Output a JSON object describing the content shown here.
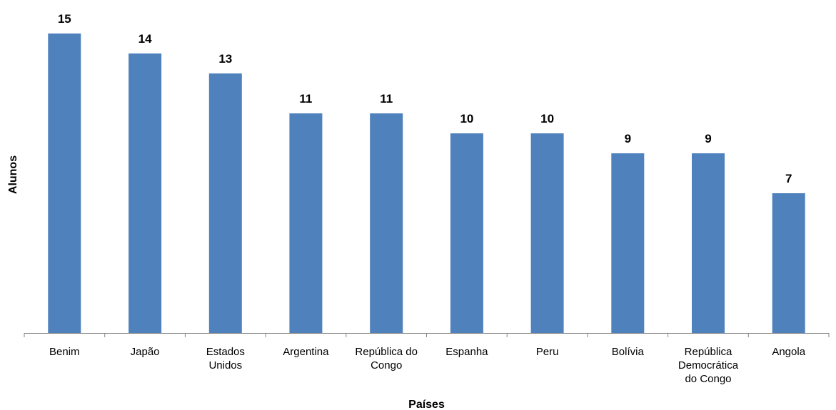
{
  "chart_data": {
    "type": "bar",
    "categories": [
      "Benim",
      "Japão",
      "Estados Unidos",
      "Argentina",
      "República do Congo",
      "Espanha",
      "Peru",
      "Bolívia",
      "República Democrática do Congo",
      "Angola"
    ],
    "category_lines": [
      [
        "Benim"
      ],
      [
        "Japão"
      ],
      [
        "Estados",
        "Unidos"
      ],
      [
        "Argentina"
      ],
      [
        "República do",
        "Congo"
      ],
      [
        "Espanha"
      ],
      [
        "Peru"
      ],
      [
        "Bolívia"
      ],
      [
        "República",
        "Democrática",
        "do Congo"
      ],
      [
        "Angola"
      ]
    ],
    "values": [
      15,
      14,
      13,
      11,
      11,
      10,
      10,
      9,
      9,
      7
    ],
    "xlabel": "Países",
    "ylabel": "Alunos",
    "ylim": [
      0,
      15
    ],
    "grid": false,
    "data_labels": true,
    "bar_color": "#4f81bd",
    "axis_color": "#868686"
  }
}
